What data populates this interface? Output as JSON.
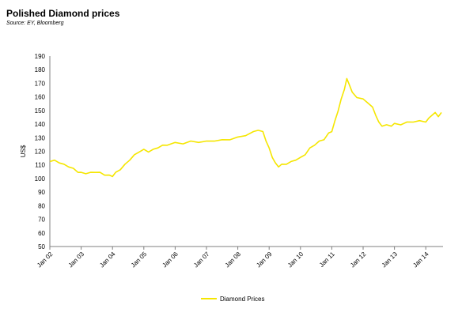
{
  "title": "Polished Diamond prices",
  "source": "Source: EY, Bloomberg",
  "colors": {
    "series": "#f5e600",
    "axis": "#7f7f7f"
  },
  "chart_data": {
    "type": "line",
    "ylabel": "US$",
    "ylim": [
      50,
      190
    ],
    "yticks": [
      50,
      60,
      70,
      80,
      90,
      100,
      110,
      120,
      130,
      140,
      150,
      160,
      170,
      180,
      190
    ],
    "xlim": [
      2002.0,
      2014.55
    ],
    "xticks": [
      {
        "label": "Jan 02",
        "x": 2002
      },
      {
        "label": "Jan 03",
        "x": 2003
      },
      {
        "label": "Jan 04",
        "x": 2004
      },
      {
        "label": "Jan 05",
        "x": 2005
      },
      {
        "label": "Jan 06",
        "x": 2006
      },
      {
        "label": "Jan 07",
        "x": 2007
      },
      {
        "label": "Jan 08",
        "x": 2008
      },
      {
        "label": "Jan 09",
        "x": 2009
      },
      {
        "label": "Jan 10",
        "x": 2010
      },
      {
        "label": "Jan 11",
        "x": 2011
      },
      {
        "label": "Jan 12",
        "x": 2012
      },
      {
        "label": "Jan 13",
        "x": 2013
      },
      {
        "label": "Jan 14",
        "x": 2014
      }
    ],
    "legend_position": "bottom-center",
    "series": [
      {
        "name": "Diamond Prices",
        "points": [
          [
            2002.0,
            113
          ],
          [
            2002.15,
            113
          ],
          [
            2002.3,
            112
          ],
          [
            2002.45,
            110
          ],
          [
            2002.6,
            109
          ],
          [
            2002.75,
            107
          ],
          [
            2002.9,
            105
          ],
          [
            2003.0,
            104
          ],
          [
            2003.15,
            104
          ],
          [
            2003.3,
            104
          ],
          [
            2003.45,
            105
          ],
          [
            2003.6,
            104
          ],
          [
            2003.75,
            103
          ],
          [
            2003.9,
            102
          ],
          [
            2004.0,
            102
          ],
          [
            2004.1,
            104
          ],
          [
            2004.25,
            107
          ],
          [
            2004.4,
            110
          ],
          [
            2004.55,
            114
          ],
          [
            2004.7,
            117
          ],
          [
            2004.85,
            120
          ],
          [
            2005.0,
            121
          ],
          [
            2005.15,
            120
          ],
          [
            2005.3,
            121
          ],
          [
            2005.45,
            123
          ],
          [
            2005.6,
            124
          ],
          [
            2005.75,
            125
          ],
          [
            2006.0,
            126
          ],
          [
            2006.25,
            126
          ],
          [
            2006.5,
            127
          ],
          [
            2006.75,
            127
          ],
          [
            2007.0,
            127
          ],
          [
            2007.25,
            128
          ],
          [
            2007.5,
            128
          ],
          [
            2007.75,
            129
          ],
          [
            2008.0,
            130
          ],
          [
            2008.25,
            132
          ],
          [
            2008.5,
            134
          ],
          [
            2008.65,
            136
          ],
          [
            2008.8,
            134
          ],
          [
            2008.9,
            128
          ],
          [
            2009.0,
            122
          ],
          [
            2009.1,
            116
          ],
          [
            2009.2,
            111
          ],
          [
            2009.3,
            109
          ],
          [
            2009.4,
            110
          ],
          [
            2009.55,
            111
          ],
          [
            2009.7,
            112
          ],
          [
            2009.85,
            114
          ],
          [
            2010.0,
            115
          ],
          [
            2010.15,
            118
          ],
          [
            2010.3,
            122
          ],
          [
            2010.45,
            125
          ],
          [
            2010.6,
            127
          ],
          [
            2010.75,
            129
          ],
          [
            2010.9,
            133
          ],
          [
            2011.0,
            135
          ],
          [
            2011.1,
            142
          ],
          [
            2011.2,
            150
          ],
          [
            2011.3,
            158
          ],
          [
            2011.4,
            166
          ],
          [
            2011.48,
            173
          ],
          [
            2011.55,
            170
          ],
          [
            2011.65,
            163
          ],
          [
            2011.8,
            160
          ],
          [
            2012.0,
            158
          ],
          [
            2012.15,
            156
          ],
          [
            2012.3,
            152
          ],
          [
            2012.4,
            147
          ],
          [
            2012.5,
            141
          ],
          [
            2012.6,
            139
          ],
          [
            2012.75,
            139
          ],
          [
            2012.9,
            139
          ],
          [
            2013.0,
            140
          ],
          [
            2013.2,
            140
          ],
          [
            2013.4,
            141
          ],
          [
            2013.6,
            142
          ],
          [
            2013.8,
            142
          ],
          [
            2014.0,
            142
          ],
          [
            2014.1,
            144
          ],
          [
            2014.2,
            147
          ],
          [
            2014.3,
            148
          ],
          [
            2014.4,
            146
          ],
          [
            2014.5,
            148
          ]
        ]
      }
    ]
  }
}
